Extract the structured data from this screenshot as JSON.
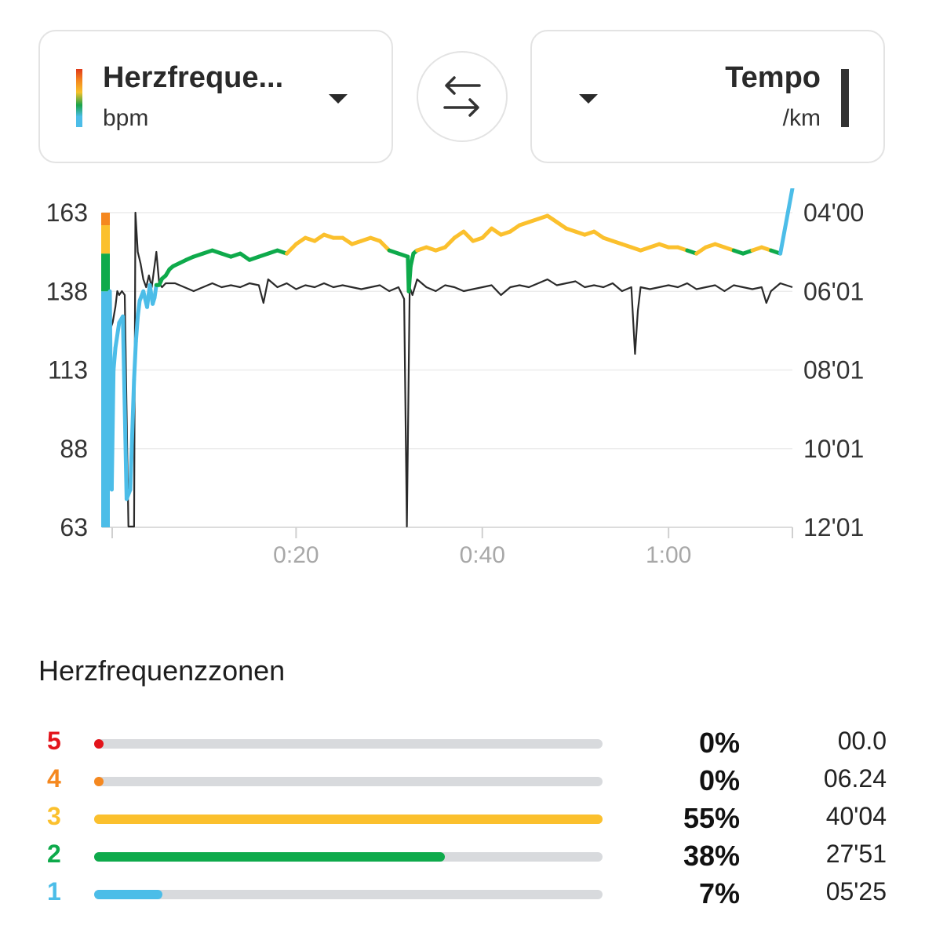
{
  "metric_left": {
    "title": "Herzfreque...",
    "unit": "bpm"
  },
  "metric_right": {
    "title": "Tempo",
    "unit": "/km"
  },
  "colors": {
    "zone5": "#e3141b",
    "zone4": "#f5881f",
    "zone3": "#fbc02d",
    "zone2": "#0eaa4b",
    "zone1": "#4cbde8",
    "pace": "#2a2a2a"
  },
  "chart_data": {
    "type": "line",
    "left_axis": {
      "unit": "bpm",
      "ticks": [
        "163",
        "138",
        "113",
        "88",
        "63"
      ],
      "range": [
        63,
        163
      ]
    },
    "right_axis": {
      "unit": "/km",
      "ticks": [
        "04'00",
        "06'01",
        "08'01",
        "10'01",
        "12'01"
      ],
      "range_min_per_km": [
        4.0,
        12.02
      ]
    },
    "x_axis": {
      "ticks": [
        "0:20",
        "0:40",
        "1:00"
      ],
      "range_min": [
        0,
        73.3
      ]
    },
    "series": [
      {
        "name": "Herzfreque...",
        "x_min": [
          0,
          0.2,
          0.4,
          0.6,
          1.0,
          1.4,
          1.8,
          2.2,
          2.6,
          2.8,
          3.0,
          3.2,
          3.6,
          4.0,
          4.3,
          4.6,
          4.8,
          5.0,
          5.3,
          5.6,
          6.0,
          6.4,
          6.8,
          7.5,
          8.2,
          9,
          10,
          11,
          12,
          13,
          14,
          15,
          16,
          17,
          18,
          19,
          20,
          21,
          22,
          23,
          24,
          25,
          26,
          27,
          28,
          29,
          30,
          31,
          32,
          32.1,
          32.3,
          32.6,
          33,
          34,
          35,
          36,
          37,
          38,
          39,
          40,
          41,
          42,
          43,
          44,
          45,
          46,
          47,
          47.5,
          48,
          49,
          50,
          51,
          52,
          53,
          54,
          55,
          56,
          57,
          58,
          59,
          60,
          61,
          62,
          63,
          64,
          65,
          66,
          67,
          68,
          69,
          70,
          71,
          72,
          73.3
        ],
        "values": [
          138,
          75,
          113,
          120,
          128,
          130,
          72,
          75,
          110,
          122,
          130,
          135,
          138,
          133,
          140,
          134,
          136,
          140,
          140,
          142,
          143,
          145,
          146,
          147,
          148,
          149,
          150,
          151,
          150,
          149,
          150,
          148,
          149,
          150,
          151,
          150,
          153,
          155,
          154,
          156,
          155,
          155,
          153,
          154,
          155,
          154,
          151,
          150,
          149,
          138,
          146,
          150,
          151,
          152,
          151,
          152,
          155,
          157,
          154,
          155,
          158,
          156,
          157,
          159,
          160,
          161,
          162,
          161,
          160,
          158,
          157,
          156,
          157,
          155,
          154,
          153,
          152,
          151,
          152,
          153,
          152,
          152,
          151,
          150,
          152,
          153,
          152,
          151,
          150,
          151,
          152,
          151,
          150
        ]
      },
      {
        "name": "Tempo",
        "x_min": [
          0,
          0.3,
          0.6,
          0.8,
          1.0,
          1.3,
          1.6,
          2.0,
          2.2,
          2.6,
          2.75,
          3.0,
          3.3,
          3.6,
          3.9,
          4.2,
          4.5,
          5.0,
          5.3,
          5.6,
          6.0,
          7,
          8,
          9,
          10,
          11,
          12,
          13,
          14,
          15,
          16,
          16.5,
          17,
          18,
          19,
          20,
          21,
          22,
          23,
          24,
          25,
          26,
          27,
          28,
          29,
          30,
          31,
          31.6,
          31.9,
          32.2,
          32.5,
          33,
          34,
          35,
          36,
          37,
          38,
          39,
          40,
          41,
          42,
          43,
          44,
          45,
          46,
          47,
          48,
          49,
          50,
          51,
          52,
          53,
          54,
          55,
          56,
          56.4,
          56.7,
          57,
          58,
          59,
          60,
          61,
          62,
          63,
          64,
          65,
          66,
          67,
          68,
          69,
          70,
          70.5,
          71,
          72,
          73.3
        ],
        "values_min_per_km": [
          7.0,
          6.8,
          6.4,
          6.0,
          6.1,
          6.0,
          6.1,
          12.0,
          12.0,
          12.0,
          4.0,
          5.0,
          5.3,
          5.7,
          5.9,
          5.6,
          5.9,
          5.0,
          5.8,
          5.9,
          5.8,
          5.8,
          5.9,
          6.0,
          5.9,
          5.8,
          5.9,
          5.85,
          5.9,
          5.8,
          5.85,
          6.3,
          5.7,
          5.9,
          5.8,
          5.95,
          5.85,
          5.9,
          5.8,
          5.9,
          5.85,
          5.9,
          5.95,
          5.9,
          5.85,
          6.0,
          5.9,
          6.2,
          12.0,
          5.9,
          6.1,
          5.7,
          5.9,
          6.0,
          5.85,
          5.9,
          6.0,
          5.95,
          5.9,
          5.85,
          6.1,
          5.9,
          5.85,
          5.9,
          5.8,
          5.7,
          5.85,
          5.8,
          5.75,
          5.9,
          5.85,
          5.9,
          5.8,
          6.0,
          5.9,
          7.6,
          6.5,
          5.9,
          5.95,
          5.9,
          5.85,
          5.9,
          5.8,
          5.95,
          5.9,
          5.85,
          6.0,
          5.85,
          5.9,
          5.95,
          5.9,
          6.3,
          6.0,
          5.8,
          5.9
        ]
      }
    ],
    "hr_zone_boundaries_bpm": [
      148,
      157,
      162
    ]
  },
  "zones": {
    "title": "Herzfrequenzzonen",
    "rows": [
      {
        "num": "5",
        "pct": "0%",
        "time": "00.0",
        "fill_percent": 0
      },
      {
        "num": "4",
        "pct": "0%",
        "time": "06.24",
        "fill_percent": 0
      },
      {
        "num": "3",
        "pct": "55%",
        "time": "40'04",
        "fill_percent": 100
      },
      {
        "num": "2",
        "pct": "38%",
        "time": "27'51",
        "fill_percent": 69
      },
      {
        "num": "1",
        "pct": "7%",
        "time": "05'25",
        "fill_percent": 13.5
      }
    ]
  }
}
